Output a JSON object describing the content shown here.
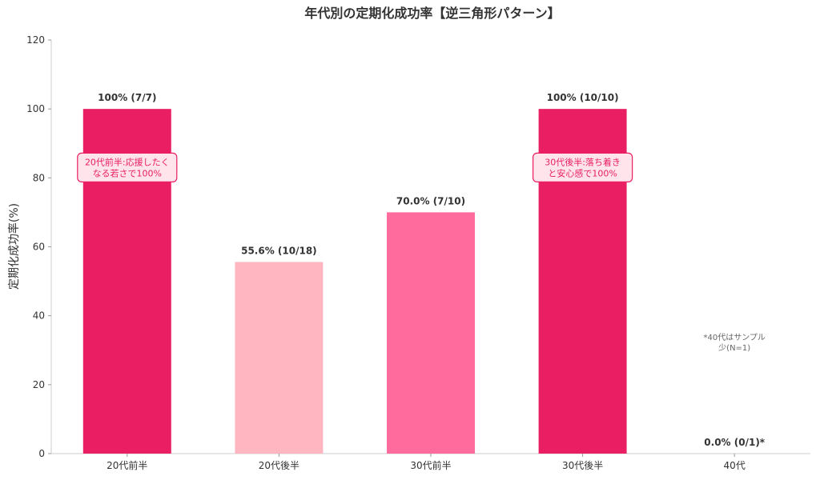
{
  "chart_data": {
    "type": "bar",
    "title": "年代別の定期化成功率【逆三角形パターン】",
    "xlabel": "",
    "ylabel": "定期化成功率(%)",
    "ylim": [
      0,
      120
    ],
    "yticks": [
      0,
      20,
      40,
      60,
      80,
      100,
      120
    ],
    "grid": false,
    "categories": [
      "20代前半",
      "20代後半",
      "30代前半",
      "30代後半",
      "40代"
    ],
    "values": [
      100,
      55.6,
      70.0,
      100,
      0.0
    ],
    "data_labels": [
      "100% (7/7)",
      "55.6% (10/18)",
      "70.0% (7/10)",
      "100% (10/10)",
      "0.0% (0/1)*"
    ],
    "colors": [
      "#e91e63",
      "#ffb6c1",
      "#ff6b9d",
      "#e91e63",
      "#e91e63"
    ],
    "annotations": [
      {
        "category": "20代前半",
        "y": 83,
        "lines": [
          "20代前半:応援したく",
          "なる若さで100%"
        ]
      },
      {
        "category": "30代後半",
        "y": 83,
        "lines": [
          "30代後半:落ち着き",
          "と安心感で100%"
        ]
      }
    ],
    "note": {
      "category": "40代",
      "y": 33,
      "lines": [
        "*40代はサンプル",
        "少(N=1)"
      ]
    }
  }
}
